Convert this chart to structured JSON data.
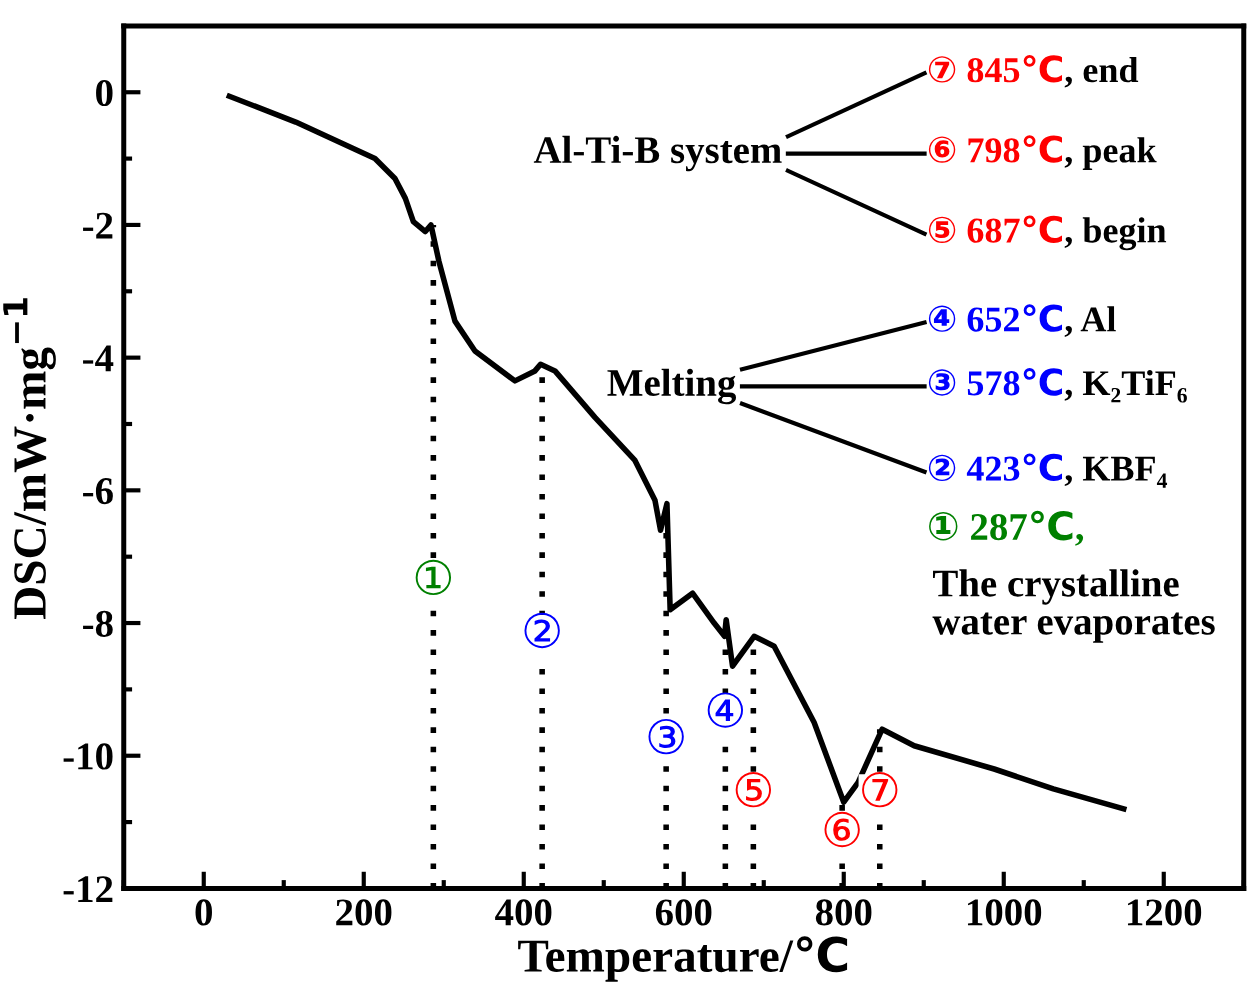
{
  "chart_data": {
    "type": "line",
    "xlabel": "Temperature/℃",
    "ylabel": "DSC/mW·mg$^{−1}$",
    "xlim": [
      -100,
      1300
    ],
    "xticks": [
      0,
      200,
      400,
      600,
      800,
      1000,
      1200
    ],
    "ylim": [
      -12,
      1
    ],
    "yticks": [
      -12,
      -10,
      -8,
      -6,
      -4,
      -2,
      0
    ],
    "grid": false,
    "legend": false,
    "marker": "none",
    "line_style": "solid",
    "series": [
      {
        "color": "#000000",
        "x": [
          32,
          115,
          214,
          239,
          252,
          262,
          277,
          284,
          294,
          314,
          339,
          389,
          414,
          421,
          439,
          489,
          539,
          564,
          571,
          579,
          583,
          611,
          638,
          651,
          653,
          661,
          688,
          713,
          763,
          800,
          818,
          848,
          888,
          988,
          1062,
          1150
        ],
        "values": [
          -0.06,
          -0.45,
          -1.0,
          -1.3,
          -1.6,
          -1.95,
          -2.1,
          -2.0,
          -2.55,
          -3.45,
          -3.9,
          -4.35,
          -4.2,
          -4.1,
          -4.2,
          -4.9,
          -5.55,
          -6.15,
          -6.6,
          -6.2,
          -7.8,
          -7.55,
          -8.0,
          -8.2,
          -7.95,
          -8.65,
          -8.2,
          -8.35,
          -9.5,
          -10.7,
          -10.4,
          -9.6,
          -9.85,
          -10.2,
          -10.5,
          -10.8
        ]
      },
      {
        "color": "#000000",
        "line_style": "dotted",
        "x": [
          287,
          287
        ],
        "values": [
          -12,
          -2.0
        ]
      },
      {
        "color": "#000000",
        "line_style": "dotted",
        "x": [
          423,
          423
        ],
        "values": [
          -12,
          -4.1
        ]
      },
      {
        "color": "#000000",
        "line_style": "dotted",
        "x": [
          578,
          578
        ],
        "values": [
          -12,
          -6.3
        ]
      },
      {
        "color": "#000000",
        "line_style": "dotted",
        "x": [
          652,
          652
        ],
        "values": [
          -12,
          -8.0
        ]
      },
      {
        "color": "#000000",
        "line_style": "dotted",
        "x": [
          687,
          687
        ],
        "values": [
          -12,
          -8.2
        ]
      },
      {
        "color": "#000000",
        "line_style": "dotted",
        "x": [
          798,
          798
        ],
        "values": [
          -12,
          -10.7
        ]
      },
      {
        "color": "#000000",
        "line_style": "dotted",
        "x": [
          845,
          845
        ],
        "values": [
          -12,
          -9.6
        ]
      }
    ],
    "annotations": [
      {
        "text": "①",
        "x": 287,
        "y": -7.4
      },
      {
        "text": "②",
        "x": 423,
        "y": -8.2
      },
      {
        "text": "③",
        "x": 578,
        "y": -9.8
      },
      {
        "text": "④",
        "x": 652,
        "y": -9.4
      },
      {
        "text": "⑤",
        "x": 687,
        "y": -10.6
      },
      {
        "text": "⑥",
        "x": 798,
        "y": -11.2
      },
      {
        "text": "⑦",
        "x": 845,
        "y": -10.6
      },
      "Al-Ti-B system",
      "⑦ 845℃, end",
      "⑥ 798℃, peak",
      "⑤ 687℃, begin",
      "Melting",
      "④ 652℃, Al",
      "③ 578℃, K₂TiF₆",
      "② 423℃, KBF₄",
      "① 287℃,\nThe crystalline\nwater evaporates"
    ]
  }
}
